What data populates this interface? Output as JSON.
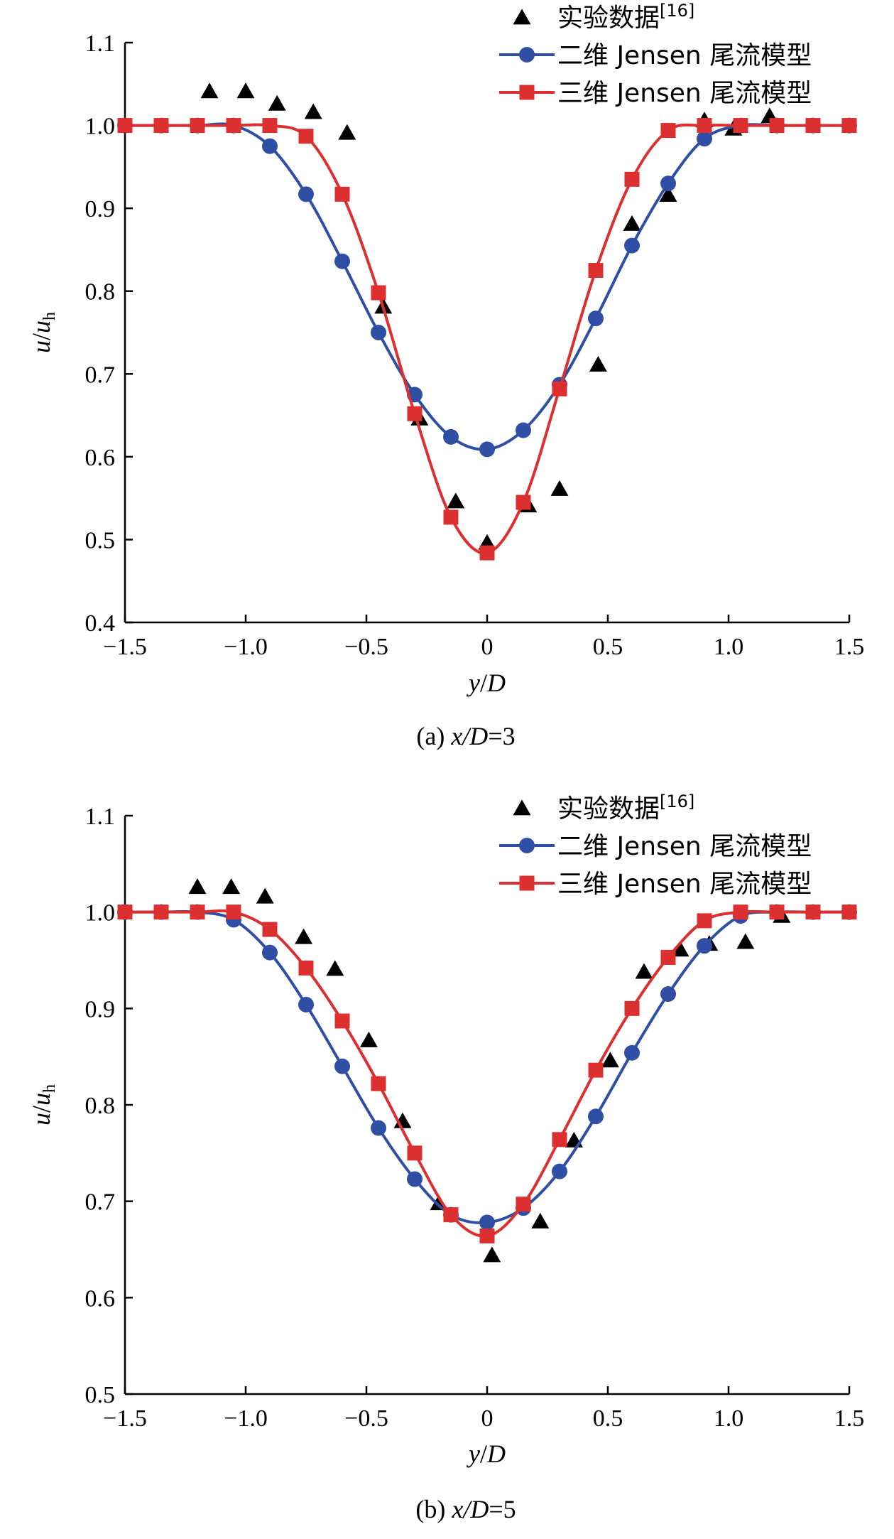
{
  "colors": {
    "experiment": "#000000",
    "model_2d": "#2e4fa3",
    "model_3d": "#dc2f2f"
  },
  "legend": {
    "experiment": "实验数据",
    "experiment_ref": "[16]",
    "model_2d": "二维 Jensen 尾流模型",
    "model_3d": "三维 Jensen 尾流模型"
  },
  "chart_data": [
    {
      "type": "line",
      "caption_prefix": "(a) ",
      "caption_var": "x/D",
      "caption_value": "=3",
      "xlabel": {
        "var1": "y",
        "sep": "/",
        "var2": "D"
      },
      "ylabel": {
        "var": "u",
        "sep": "/",
        "base": "u",
        "sub": "h"
      },
      "xlim": [
        -1.5,
        1.5
      ],
      "ylim": [
        0.4,
        1.1
      ],
      "xticks": [
        -1.5,
        -1.0,
        -0.5,
        0,
        0.5,
        1.0,
        1.5
      ],
      "xtick_labels": [
        "−1.5",
        "−1.0",
        "−0.5",
        "0",
        "0.5",
        "1.0",
        "1.5"
      ],
      "yticks": [
        0.4,
        0.5,
        0.6,
        0.7,
        0.8,
        0.9,
        1.0,
        1.1
      ],
      "ytick_labels": [
        "0.4",
        "0.5",
        "0.6",
        "0.7",
        "0.8",
        "0.9",
        "1.0",
        "1.1"
      ],
      "series": [
        {
          "key": "experiment",
          "marker": "triangle",
          "x": [
            -1.15,
            -1.0,
            -0.87,
            -0.72,
            -0.58,
            -0.43,
            -0.28,
            -0.13,
            0.0,
            0.17,
            0.3,
            0.46,
            0.6,
            0.75,
            0.9,
            1.02,
            1.17
          ],
          "y": [
            1.04,
            1.04,
            1.025,
            1.015,
            0.99,
            0.78,
            0.645,
            0.545,
            0.495,
            0.54,
            0.56,
            0.71,
            0.88,
            0.915,
            1.005,
            0.995,
            1.01
          ]
        },
        {
          "key": "model_2d",
          "marker": "circle",
          "x": [
            -1.5,
            -1.35,
            -1.2,
            -1.05,
            -0.9,
            -0.75,
            -0.6,
            -0.45,
            -0.3,
            -0.15,
            0.0,
            0.15,
            0.3,
            0.45,
            0.6,
            0.75,
            0.9,
            1.05,
            1.2,
            1.35,
            1.5
          ],
          "y": [
            1.0,
            1.0,
            1.0,
            1.0,
            0.975,
            0.917,
            0.836,
            0.75,
            0.675,
            0.624,
            0.609,
            0.632,
            0.687,
            0.767,
            0.855,
            0.93,
            0.984,
            1.0,
            1.0,
            1.0,
            1.0
          ]
        },
        {
          "key": "model_3d",
          "marker": "square",
          "x": [
            -1.5,
            -1.35,
            -1.2,
            -1.05,
            -0.9,
            -0.75,
            -0.6,
            -0.45,
            -0.3,
            -0.15,
            0.0,
            0.15,
            0.3,
            0.45,
            0.6,
            0.75,
            0.9,
            1.05,
            1.2,
            1.35,
            1.5
          ],
          "y": [
            1.0,
            1.0,
            1.0,
            1.0,
            1.0,
            0.987,
            0.917,
            0.798,
            0.652,
            0.527,
            0.484,
            0.545,
            0.682,
            0.825,
            0.935,
            0.994,
            1.0,
            1.0,
            1.0,
            1.0,
            1.0
          ]
        }
      ]
    },
    {
      "type": "line",
      "caption_prefix": "(b) ",
      "caption_var": "x/D",
      "caption_value": "=5",
      "xlabel": {
        "var1": "y",
        "sep": "/",
        "var2": "D"
      },
      "ylabel": {
        "var": "u",
        "sep": "/",
        "base": "u",
        "sub": "h"
      },
      "xlim": [
        -1.5,
        1.5
      ],
      "ylim": [
        0.5,
        1.1
      ],
      "xticks": [
        -1.5,
        -1.0,
        -0.5,
        0,
        0.5,
        1.0,
        1.5
      ],
      "xtick_labels": [
        "−1.5",
        "−1.0",
        "−0.5",
        "0",
        "0.5",
        "1.0",
        "1.5"
      ],
      "yticks": [
        0.5,
        0.6,
        0.7,
        0.8,
        0.9,
        1.0,
        1.1
      ],
      "ytick_labels": [
        "0.5",
        "0.6",
        "0.7",
        "0.8",
        "0.9",
        "1.0",
        "1.1"
      ],
      "series": [
        {
          "key": "experiment",
          "marker": "triangle",
          "x": [
            -1.2,
            -1.06,
            -0.92,
            -0.76,
            -0.63,
            -0.49,
            -0.35,
            -0.2,
            0.02,
            0.22,
            0.36,
            0.51,
            0.65,
            0.8,
            0.92,
            1.07,
            1.22
          ],
          "y": [
            1.025,
            1.025,
            1.015,
            0.973,
            0.94,
            0.866,
            0.782,
            0.697,
            0.643,
            0.678,
            0.762,
            0.845,
            0.937,
            0.96,
            0.966,
            0.968,
            0.995
          ]
        },
        {
          "key": "model_2d",
          "marker": "circle",
          "x": [
            -1.5,
            -1.35,
            -1.2,
            -1.05,
            -0.9,
            -0.75,
            -0.6,
            -0.45,
            -0.3,
            -0.15,
            0.0,
            0.15,
            0.3,
            0.45,
            0.6,
            0.75,
            0.9,
            1.05,
            1.2,
            1.35,
            1.5
          ],
          "y": [
            1.0,
            1.0,
            1.0,
            0.992,
            0.958,
            0.904,
            0.84,
            0.776,
            0.723,
            0.686,
            0.678,
            0.693,
            0.731,
            0.788,
            0.854,
            0.915,
            0.965,
            0.996,
            1.0,
            1.0,
            1.0
          ]
        },
        {
          "key": "model_3d",
          "marker": "square",
          "x": [
            -1.5,
            -1.35,
            -1.2,
            -1.05,
            -0.9,
            -0.75,
            -0.6,
            -0.45,
            -0.3,
            -0.15,
            0.0,
            0.15,
            0.3,
            0.45,
            0.6,
            0.75,
            0.9,
            1.05,
            1.2,
            1.35,
            1.5
          ],
          "y": [
            1.0,
            1.0,
            1.0,
            1.0,
            0.982,
            0.942,
            0.887,
            0.822,
            0.75,
            0.686,
            0.664,
            0.697,
            0.764,
            0.836,
            0.9,
            0.953,
            0.991,
            1.0,
            1.0,
            1.0,
            1.0
          ]
        }
      ]
    }
  ]
}
